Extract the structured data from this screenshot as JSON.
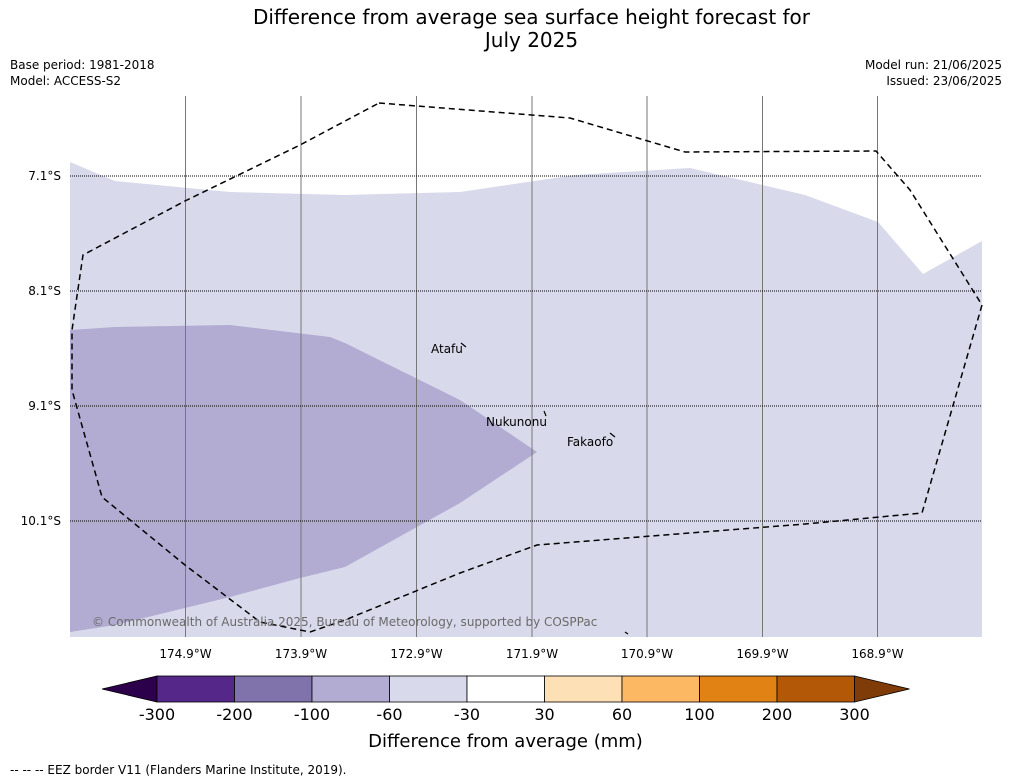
{
  "title_line1": "Difference from average sea surface height forecast for",
  "title_line2": "July 2025",
  "base_period": "Base period: 1981-2018",
  "model": "Model: ACCESS-S2",
  "model_run": "Model run: 21/06/2025",
  "issued": "Issued: 23/06/2025",
  "latitude_labels": [
    "7.1°S",
    "8.1°S",
    "9.1°S",
    "10.1°S"
  ],
  "longitude_labels": [
    "174.9°W",
    "173.9°W",
    "172.9°W",
    "171.9°W",
    "170.9°W",
    "169.9°W",
    "168.9°W"
  ],
  "places": [
    "Atafu",
    "Nukunonu",
    "Fakaofo"
  ],
  "copyright": "© Commonwealth of Australia 2025, Bureau of Meteorology, supported by COSPPac",
  "colorbar": {
    "tick_labels": [
      "-300",
      "-200",
      "-100",
      "-60",
      "-30",
      "30",
      "60",
      "100",
      "200",
      "300"
    ],
    "colors": [
      "#2d004b",
      "#542788",
      "#8073ac",
      "#b2abd2",
      "#d8daeb",
      "#ffffff",
      "#fee0b6",
      "#fdb863",
      "#e08214",
      "#b35806",
      "#7f3b08"
    ],
    "label": "Difference from average (mm)"
  },
  "footnote": "--  --  -- EEZ border V11 (Flanders Marine Institute, 2019)."
}
